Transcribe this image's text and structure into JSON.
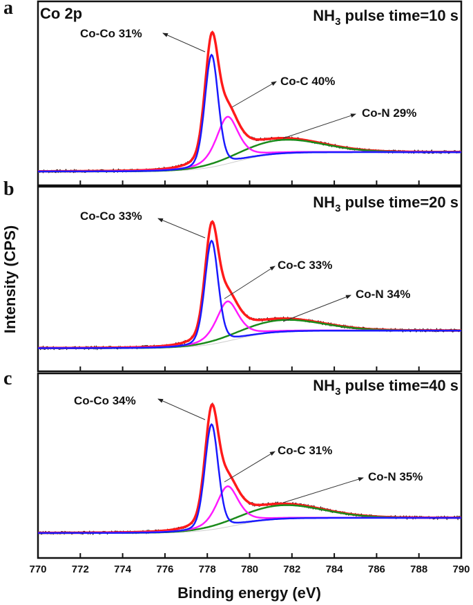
{
  "chart_data": {
    "type": "line",
    "xlabel": "Binding energy (eV)",
    "ylabel": "Intensity (CPS)",
    "xlim": [
      770,
      790
    ],
    "xticks": [
      770,
      772,
      774,
      776,
      778,
      780,
      782,
      784,
      786,
      788,
      790
    ],
    "ylim": [
      0,
      1
    ],
    "y_units": "a.u. (no tick labels)",
    "grid": false,
    "colors": {
      "envelope": "#ff1a1a",
      "data": "#111111",
      "Co-Co": "#1a1aff",
      "Co-C": "#ff1aff",
      "Co-N": "#1a8a1a",
      "background": "#cccccc"
    },
    "panels": [
      {
        "letter": "a",
        "element_label": "Co 2p",
        "title": {
          "prefix": "NH",
          "sub": "3",
          "suffix": " pulse time=10 s"
        },
        "background": {
          "low_side": 0.075,
          "high_side": 0.18
        },
        "components": [
          {
            "name": "Co-Co",
            "label": "Co-Co 31%",
            "center": 778.2,
            "amplitude": 0.61,
            "fwhm": 0.75
          },
          {
            "name": "Co-C",
            "label": "Co-C 40%",
            "center": 778.95,
            "amplitude": 0.255,
            "fwhm": 1.25
          },
          {
            "name": "Co-N",
            "label": "Co-N 29%",
            "center": 781.5,
            "amplitude": 0.075,
            "fwhm": 4.6
          }
        ]
      },
      {
        "letter": "b",
        "element_label": "",
        "title": {
          "prefix": "NH",
          "sub": "3",
          "suffix": " pulse time=20 s"
        },
        "background": {
          "low_side": 0.125,
          "high_side": 0.22
        },
        "components": [
          {
            "name": "Co-Co",
            "label": "Co-Co 33%",
            "center": 778.2,
            "amplitude": 0.56,
            "fwhm": 0.75
          },
          {
            "name": "Co-C",
            "label": "Co-C 33%",
            "center": 778.95,
            "amplitude": 0.215,
            "fwhm": 1.25
          },
          {
            "name": "Co-N",
            "label": "Co-N 34%",
            "center": 781.5,
            "amplitude": 0.065,
            "fwhm": 4.6
          }
        ]
      },
      {
        "letter": "c",
        "element_label": "",
        "title": {
          "prefix": "NH",
          "sub": "3",
          "suffix": " pulse time=40 s"
        },
        "background": {
          "low_side": 0.135,
          "high_side": 0.217
        },
        "components": [
          {
            "name": "Co-Co",
            "label": "Co-Co 34%",
            "center": 778.2,
            "amplitude": 0.57,
            "fwhm": 0.75
          },
          {
            "name": "Co-C",
            "label": "Co-C 31%",
            "center": 778.95,
            "amplitude": 0.22,
            "fwhm": 1.25
          },
          {
            "name": "Co-N",
            "label": "Co-N 35%",
            "center": 781.5,
            "amplitude": 0.075,
            "fwhm": 4.6
          }
        ]
      }
    ]
  }
}
